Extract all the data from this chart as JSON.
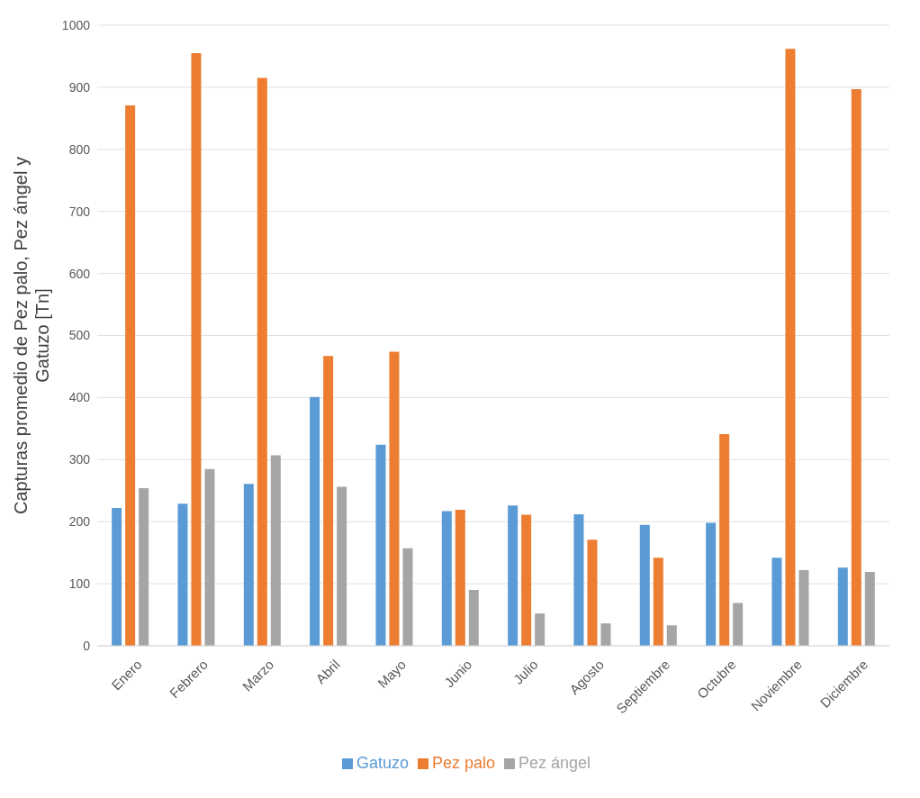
{
  "chart_data": {
    "type": "bar",
    "ylabel": "Capturas promedio de Pez palo, Pez ángel y Gatuzo [Tn]",
    "categories": [
      "Enero",
      "Febrero",
      "Marzo",
      "Abril",
      "Mayo",
      "Junio",
      "Julio",
      "Agosto",
      "Septiembre",
      "Octubre",
      "Noviembre",
      "Diciembre"
    ],
    "series": [
      {
        "name": "Gatuzo",
        "color": "#5b9bd5",
        "values": [
          222,
          229,
          261,
          401,
          324,
          217,
          226,
          212,
          195,
          198,
          142,
          126
        ]
      },
      {
        "name": "Pez palo",
        "color": "#ed7d31",
        "values": [
          871,
          955,
          915,
          467,
          474,
          219,
          211,
          171,
          142,
          341,
          962,
          897
        ]
      },
      {
        "name": "Pez ángel",
        "color": "#a5a5a5",
        "values": [
          254,
          285,
          307,
          256,
          157,
          90,
          52,
          36,
          33,
          69,
          122,
          119
        ]
      }
    ],
    "ylim": [
      0,
      1000
    ],
    "yticks": [
      0,
      100,
      200,
      300,
      400,
      500,
      600,
      700,
      800,
      900,
      1000
    ],
    "grid": "y",
    "legend": "bottom"
  }
}
